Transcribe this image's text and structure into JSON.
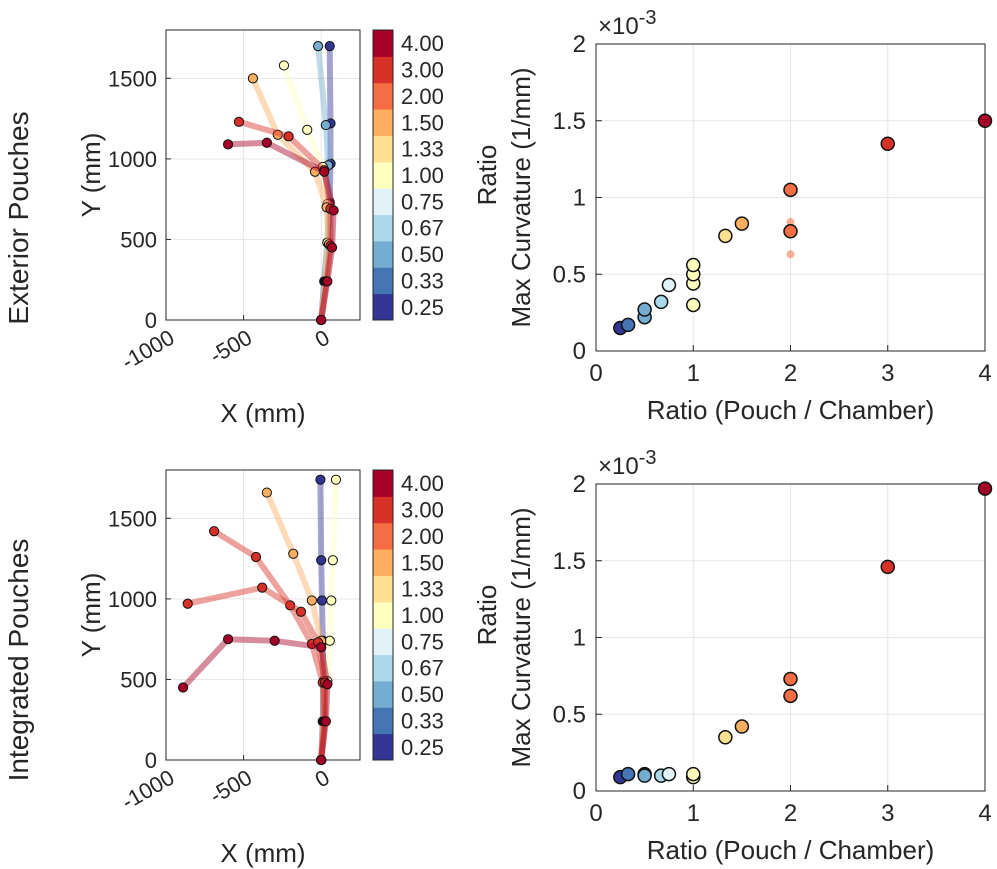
{
  "row_labels": [
    "Exterior Pouches",
    "Integrated Pouches"
  ],
  "colorbar": {
    "title": "Ratio",
    "labels": [
      "0.25",
      "0.33",
      "0.50",
      "0.67",
      "0.75",
      "1.00",
      "1.33",
      "1.50",
      "2.00",
      "3.00",
      "4.00"
    ],
    "colors": [
      "#313695",
      "#4575b4",
      "#74add1",
      "#abd9e9",
      "#e0f3f8",
      "#ffffbf",
      "#fee090",
      "#fdae61",
      "#f46d43",
      "#d73027",
      "#a50026"
    ]
  },
  "chart_data": [
    {
      "id": "exterior-traj",
      "type": "line",
      "title": "",
      "xlabel": "X (mm)",
      "ylabel": "Y (mm)",
      "xlim": [
        -1000,
        250
      ],
      "ylim": [
        0,
        1800
      ],
      "xticks": [
        -1000,
        -500,
        0
      ],
      "yticks": [
        0,
        500,
        1000,
        1500
      ],
      "xtick_labels": [
        "-1000",
        "-500",
        "0"
      ],
      "ytick_labels": [
        "0",
        "500",
        "1000",
        "1500"
      ],
      "series": [
        {
          "name": "0.25",
          "x": [
            0,
            20,
            40,
            55,
            60,
            60,
            55
          ],
          "y": [
            0,
            240,
            480,
            730,
            970,
            1220,
            1700
          ]
        },
        {
          "name": "0.50",
          "x": [
            0,
            20,
            40,
            50,
            45,
            30,
            -20
          ],
          "y": [
            0,
            240,
            480,
            720,
            960,
            1210,
            1700
          ]
        },
        {
          "name": "1.00",
          "x": [
            0,
            25,
            40,
            40,
            10,
            -90,
            -240
          ],
          "y": [
            0,
            240,
            480,
            720,
            950,
            1180,
            1580
          ]
        },
        {
          "name": "1.50",
          "x": [
            0,
            30,
            50,
            35,
            -40,
            -280,
            -440
          ],
          "y": [
            0,
            240,
            470,
            700,
            920,
            1150,
            1500
          ]
        },
        {
          "name": "3.00",
          "x": [
            0,
            35,
            60,
            60,
            20,
            -210,
            -530
          ],
          "y": [
            0,
            240,
            460,
            690,
            930,
            1140,
            1230
          ]
        },
        {
          "name": "4.00",
          "x": [
            0,
            40,
            70,
            80,
            20,
            -350,
            -600
          ],
          "y": [
            0,
            240,
            450,
            680,
            920,
            1100,
            1090
          ]
        }
      ]
    },
    {
      "id": "exterior-curvature",
      "type": "scatter",
      "title": "",
      "xlabel": "Ratio (Pouch / Chamber)",
      "ylabel": "Max Curvature (1/mm)",
      "exponent_label": "×10",
      "exponent_power": "-3",
      "xlim": [
        0,
        4
      ],
      "ylim": [
        0,
        2
      ],
      "xticks": [
        0,
        1,
        2,
        3,
        4
      ],
      "yticks": [
        0,
        0.5,
        1,
        1.5,
        2
      ],
      "xtick_labels": [
        "0",
        "1",
        "2",
        "3",
        "4"
      ],
      "ytick_labels": [
        "0",
        "0.5",
        "1",
        "1.5",
        "2"
      ],
      "points": [
        {
          "x": 0.25,
          "y": 0.15,
          "ratio": "0.25"
        },
        {
          "x": 0.33,
          "y": 0.17,
          "ratio": "0.33"
        },
        {
          "x": 0.5,
          "y": 0.22,
          "ratio": "0.50"
        },
        {
          "x": 0.5,
          "y": 0.27,
          "ratio": "0.50"
        },
        {
          "x": 0.67,
          "y": 0.32,
          "ratio": "0.67"
        },
        {
          "x": 0.75,
          "y": 0.43,
          "ratio": "0.75"
        },
        {
          "x": 1.0,
          "y": 0.3,
          "ratio": "1.00"
        },
        {
          "x": 1.0,
          "y": 0.44,
          "ratio": "1.00"
        },
        {
          "x": 1.0,
          "y": 0.5,
          "ratio": "1.00"
        },
        {
          "x": 1.0,
          "y": 0.56,
          "ratio": "1.00"
        },
        {
          "x": 1.33,
          "y": 0.75,
          "ratio": "1.33"
        },
        {
          "x": 1.5,
          "y": 0.83,
          "ratio": "1.50"
        },
        {
          "x": 2.0,
          "y": 0.78,
          "ratio": "2.00"
        },
        {
          "x": 2.0,
          "y": 1.05,
          "ratio": "2.00"
        },
        {
          "x": 3.0,
          "y": 1.35,
          "ratio": "3.00"
        },
        {
          "x": 4.0,
          "y": 1.5,
          "ratio": "4.00"
        }
      ],
      "faded_points": [
        {
          "x": 2.0,
          "y": 0.84,
          "ratio": "2.00"
        },
        {
          "x": 2.0,
          "y": 0.8,
          "ratio": "2.00"
        },
        {
          "x": 2.0,
          "y": 0.63,
          "ratio": "2.00"
        }
      ]
    },
    {
      "id": "integrated-traj",
      "type": "line",
      "title": "",
      "xlabel": "X (mm)",
      "ylabel": "Y (mm)",
      "xlim": [
        -1000,
        250
      ],
      "ylim": [
        0,
        1800
      ],
      "xticks": [
        -1000,
        -500,
        0
      ],
      "yticks": [
        0,
        500,
        1000,
        1500
      ],
      "xtick_labels": [
        "-1000",
        "-500",
        "0"
      ],
      "ytick_labels": [
        "0",
        "500",
        "1000",
        "1500"
      ],
      "series": [
        {
          "name": "0.25",
          "x": [
            0,
            10,
            15,
            10,
            5,
            0,
            -5
          ],
          "y": [
            0,
            240,
            490,
            740,
            990,
            1240,
            1740
          ]
        },
        {
          "name": "1.00",
          "x": [
            0,
            20,
            40,
            55,
            65,
            75,
            95
          ],
          "y": [
            0,
            240,
            490,
            740,
            990,
            1240,
            1740
          ]
        },
        {
          "name": "1.50",
          "x": [
            0,
            15,
            20,
            0,
            -60,
            -180,
            -350
          ],
          "y": [
            0,
            240,
            490,
            740,
            990,
            1280,
            1660
          ]
        },
        {
          "name": "3.00",
          "x": [
            0,
            20,
            10,
            -60,
            -200,
            -420,
            -690
          ],
          "y": [
            0,
            240,
            480,
            720,
            960,
            1260,
            1420
          ]
        },
        {
          "name": "3.00",
          "x": [
            0,
            25,
            25,
            -20,
            -130,
            -380,
            -860
          ],
          "y": [
            0,
            240,
            480,
            730,
            920,
            1070,
            970
          ]
        },
        {
          "name": "4.00",
          "x": [
            0,
            30,
            40,
            0,
            -300,
            -600,
            -890
          ],
          "y": [
            0,
            240,
            470,
            700,
            740,
            750,
            450
          ]
        }
      ]
    },
    {
      "id": "integrated-curvature",
      "type": "scatter",
      "title": "",
      "xlabel": "Ratio (Pouch / Chamber)",
      "ylabel": "Max Curvature (1/mm)",
      "exponent_label": "×10",
      "exponent_power": "-3",
      "xlim": [
        0,
        4
      ],
      "ylim": [
        0,
        2
      ],
      "xticks": [
        0,
        1,
        2,
        3,
        4
      ],
      "yticks": [
        0,
        0.5,
        1,
        1.5,
        2
      ],
      "xtick_labels": [
        "0",
        "1",
        "2",
        "3",
        "4"
      ],
      "ytick_labels": [
        "0",
        "0.5",
        "1",
        "1.5",
        "2"
      ],
      "points": [
        {
          "x": 0.25,
          "y": 0.09,
          "ratio": "0.25"
        },
        {
          "x": 0.33,
          "y": 0.11,
          "ratio": "0.33"
        },
        {
          "x": 0.5,
          "y": 0.11,
          "ratio": "0.50"
        },
        {
          "x": 0.5,
          "y": 0.1,
          "ratio": "0.50"
        },
        {
          "x": 0.67,
          "y": 0.1,
          "ratio": "0.67"
        },
        {
          "x": 0.75,
          "y": 0.11,
          "ratio": "0.75"
        },
        {
          "x": 1.0,
          "y": 0.09,
          "ratio": "1.00"
        },
        {
          "x": 1.0,
          "y": 0.11,
          "ratio": "1.00"
        },
        {
          "x": 1.33,
          "y": 0.35,
          "ratio": "1.33"
        },
        {
          "x": 1.5,
          "y": 0.42,
          "ratio": "1.50"
        },
        {
          "x": 2.0,
          "y": 0.62,
          "ratio": "2.00"
        },
        {
          "x": 2.0,
          "y": 0.73,
          "ratio": "2.00"
        },
        {
          "x": 3.0,
          "y": 1.46,
          "ratio": "3.00"
        },
        {
          "x": 4.0,
          "y": 1.97,
          "ratio": "4.00"
        }
      ],
      "faded_points": []
    }
  ]
}
